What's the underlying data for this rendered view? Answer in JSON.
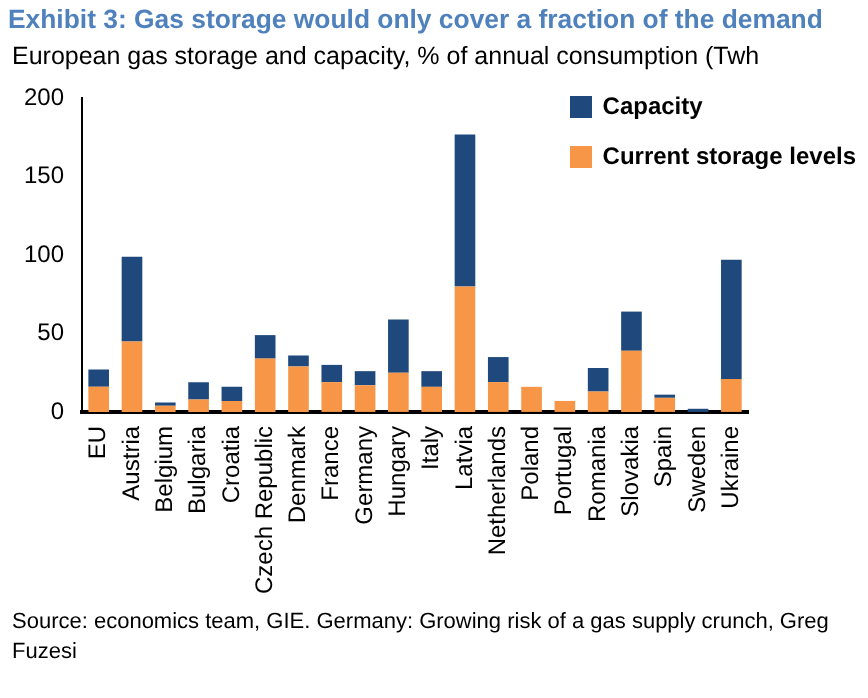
{
  "chart_data": {
    "type": "bar",
    "title": "Exhibit 3: Gas storage would only cover a fraction of the demand",
    "subtitle": "European gas storage and capacity, % of annual consumption (Twh",
    "categories": [
      "EU",
      "Austria",
      "Belgium",
      "Bulgaria",
      "Croatia",
      "Czech Republic",
      "Denmark",
      "France",
      "Germany",
      "Hungary",
      "Italy",
      "Latvia",
      "Netherlands",
      "Poland",
      "Portugal",
      "Romania",
      "Slovakia",
      "Spain",
      "Sweden",
      "Ukraine"
    ],
    "series": [
      {
        "name": "Current storage levels",
        "color": "#f79646",
        "values": [
          16,
          45,
          4,
          8,
          7,
          34,
          29,
          19,
          17,
          25,
          16,
          80,
          19,
          16,
          7,
          13,
          39,
          9,
          0,
          21
        ]
      },
      {
        "name": "Capacity",
        "color": "#1f497d",
        "values": [
          11,
          54,
          2,
          11,
          9,
          15,
          7,
          11,
          9,
          34,
          10,
          97,
          16,
          0,
          0,
          15,
          25,
          2,
          2,
          76
        ]
      }
    ],
    "stacked": true,
    "ylim": [
      0,
      200
    ],
    "yticks": [
      0,
      50,
      100,
      150,
      200
    ],
    "grid": false,
    "legend": "top right",
    "annotations": [
      "Source: economics team, GIE. Germany: Growing risk of a gas supply crunch, Greg Fuzesi"
    ]
  }
}
